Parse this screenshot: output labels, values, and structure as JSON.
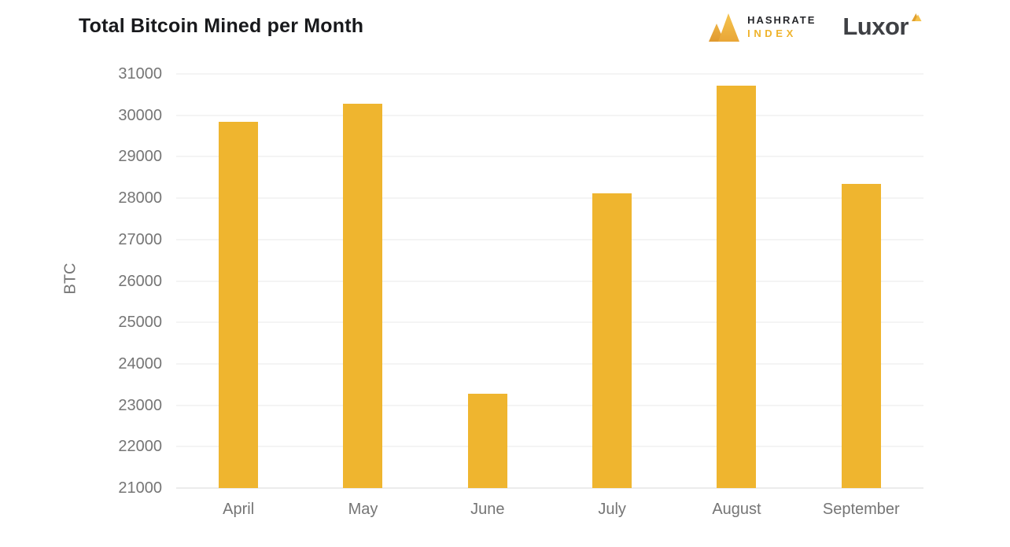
{
  "header": {
    "title": "Total Bitcoin Mined per Month",
    "brands": {
      "hashrate_index": {
        "line1": "HASHRATE",
        "line2": "INDEX"
      },
      "luxor": {
        "text": "Luxor"
      }
    }
  },
  "chart_data": {
    "type": "bar",
    "title": "Total Bitcoin Mined per Month",
    "categories": [
      "April",
      "May",
      "June",
      "July",
      "August",
      "September"
    ],
    "values": [
      29840,
      30270,
      23270,
      28120,
      30720,
      28340
    ],
    "xlabel": "",
    "ylabel": "BTC",
    "ylim": [
      21000,
      31000
    ],
    "yticks": [
      21000,
      22000,
      23000,
      24000,
      25000,
      26000,
      27000,
      28000,
      29000,
      30000,
      31000
    ],
    "ytick_step": 1000,
    "grid": true,
    "legend": "none",
    "bar_color": "#EFB52F",
    "background": "#FFFFFF"
  },
  "colors": {
    "bar": "#EFB52F",
    "gridline": "#E8E8E8",
    "axis_line": "#D9D9D9",
    "tick_text": "#757575",
    "title_text": "#18191C",
    "brand_gold": "#EFB32C",
    "luxor_text": "#3E4044"
  }
}
